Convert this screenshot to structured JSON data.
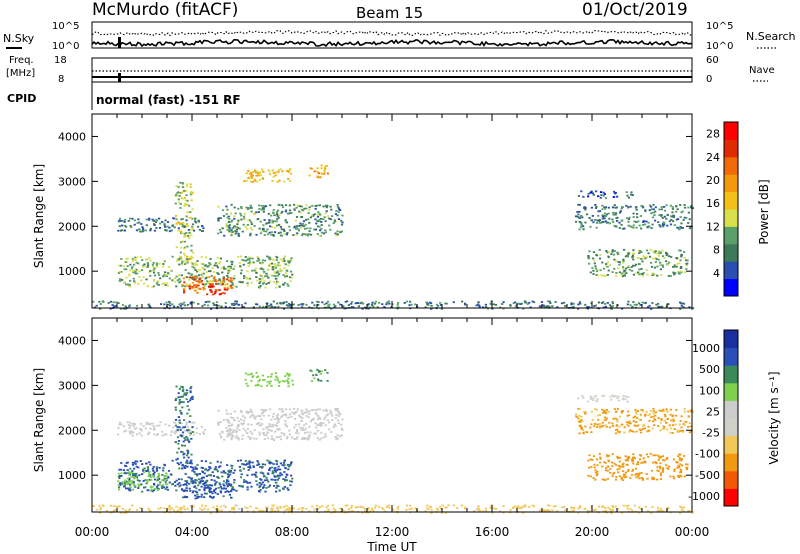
{
  "header": {
    "station": "McMurdo (fitACF)",
    "beam": "Beam 15",
    "date": "01/Oct/2019"
  },
  "status_panels": {
    "nsky_label": "N.Sky",
    "nsky_ticks": [
      "10^5",
      "10^0"
    ],
    "nsearch_label": "N.Search",
    "nsearch_ticks": [
      "10^5",
      "10^0"
    ],
    "freq_label": "Freq.",
    "freq_unit": "[MHz]",
    "freq_ticks": [
      "18",
      "8"
    ],
    "nave_label": "Nave",
    "nave_ticks": [
      "60",
      "0"
    ],
    "cpid_label": "CPID",
    "cpid_text": "normal (fast) -151 RF"
  },
  "colors": {
    "power_scale": [
      "#0000ff",
      "#2a4fb0",
      "#3d7a5a",
      "#5aa06a",
      "#d7e04a",
      "#f2c018",
      "#f39a0c",
      "#f06a08",
      "#e02a00",
      "#ff0000"
    ],
    "velocity_scale": [
      "#ff0000",
      "#f05a05",
      "#f09a14",
      "#f2c858",
      "#d0d0c8",
      "#cccccc",
      "#80d050",
      "#3a8a5a",
      "#2a50b8",
      "#1a2fa0"
    ]
  },
  "chart_data": [
    {
      "type": "heatmap",
      "name": "power",
      "ylabel": "Slant Range [km]",
      "xlabel": "Time UT",
      "xlim": [
        0,
        24
      ],
      "ylim": [
        180,
        4500
      ],
      "xticks": [
        "00:00",
        "04:00",
        "08:00",
        "12:00",
        "16:00",
        "20:00",
        "00:00"
      ],
      "yticks": [
        1000,
        2000,
        3000,
        4000
      ],
      "colorbar": {
        "label": "Power [dB]",
        "ticks": [
          4,
          8,
          12,
          16,
          20,
          24,
          28
        ],
        "range": [
          0,
          30
        ]
      },
      "regions": [
        {
          "t0": 1.0,
          "t1": 8.0,
          "r0": 650,
          "r1": 1350,
          "value": 11
        },
        {
          "t0": 3.6,
          "t1": 5.6,
          "r0": 500,
          "r1": 900,
          "value": 22
        },
        {
          "t0": 4.6,
          "t1": 5.3,
          "r0": 480,
          "r1": 700,
          "value": 28
        },
        {
          "t0": 1.0,
          "t1": 4.5,
          "r0": 1900,
          "r1": 2200,
          "value": 7
        },
        {
          "t0": 5.0,
          "t1": 10.0,
          "r0": 1800,
          "r1": 2500,
          "value": 9
        },
        {
          "t0": 6.0,
          "t1": 8.0,
          "r0": 3000,
          "r1": 3300,
          "value": 17
        },
        {
          "t0": 8.6,
          "t1": 9.4,
          "r0": 3100,
          "r1": 3400,
          "value": 19
        },
        {
          "t0": 3.3,
          "t1": 4.0,
          "r0": 1200,
          "r1": 3000,
          "value": 13
        },
        {
          "t0": 19.4,
          "t1": 21.6,
          "r0": 2650,
          "r1": 2800,
          "value": 6
        },
        {
          "t0": 19.3,
          "t1": 24.0,
          "r0": 1950,
          "r1": 2500,
          "value": 8
        },
        {
          "t0": 19.8,
          "t1": 23.8,
          "r0": 900,
          "r1": 1500,
          "value": 10
        },
        {
          "t0": 0.0,
          "t1": 24.0,
          "r0": 180,
          "r1": 350,
          "value": 7
        }
      ]
    },
    {
      "type": "heatmap",
      "name": "velocity",
      "ylabel": "Slant Range [km]",
      "xlabel": "Time UT",
      "xlim": [
        0,
        24
      ],
      "ylim": [
        180,
        4500
      ],
      "xticks": [
        "00:00",
        "04:00",
        "08:00",
        "12:00",
        "16:00",
        "20:00",
        "00:00"
      ],
      "yticks": [
        1000,
        2000,
        3000,
        4000
      ],
      "colorbar": {
        "label": "Velocity [m s⁻¹]",
        "ticks": [
          1000,
          500,
          100,
          25,
          -25,
          -100,
          -500,
          -1000
        ]
      },
      "regions": [
        {
          "t0": 1.0,
          "t1": 8.0,
          "r0": 650,
          "r1": 1350,
          "value": 600
        },
        {
          "t0": 1.0,
          "t1": 3.0,
          "r0": 650,
          "r1": 1100,
          "value": 80
        },
        {
          "t0": 3.6,
          "t1": 5.6,
          "r0": 500,
          "r1": 900,
          "value": 700
        },
        {
          "t0": 1.0,
          "t1": 4.5,
          "r0": 1900,
          "r1": 2200,
          "value": 10
        },
        {
          "t0": 5.0,
          "t1": 10.0,
          "r0": 1800,
          "r1": 2500,
          "value": 10
        },
        {
          "t0": 6.0,
          "t1": 8.0,
          "r0": 3000,
          "r1": 3300,
          "value": 60
        },
        {
          "t0": 8.6,
          "t1": 9.4,
          "r0": 3100,
          "r1": 3400,
          "value": 120
        },
        {
          "t0": 3.3,
          "t1": 4.0,
          "r0": 1200,
          "r1": 3000,
          "value": 500
        },
        {
          "t0": 19.4,
          "t1": 21.6,
          "r0": 2650,
          "r1": 2800,
          "value": 0
        },
        {
          "t0": 19.3,
          "t1": 24.0,
          "r0": 1950,
          "r1": 2500,
          "value": -120
        },
        {
          "t0": 19.8,
          "t1": 23.8,
          "r0": 900,
          "r1": 1500,
          "value": -300
        },
        {
          "t0": 0.0,
          "t1": 24.0,
          "r0": 180,
          "r1": 350,
          "value": -40
        }
      ]
    }
  ]
}
